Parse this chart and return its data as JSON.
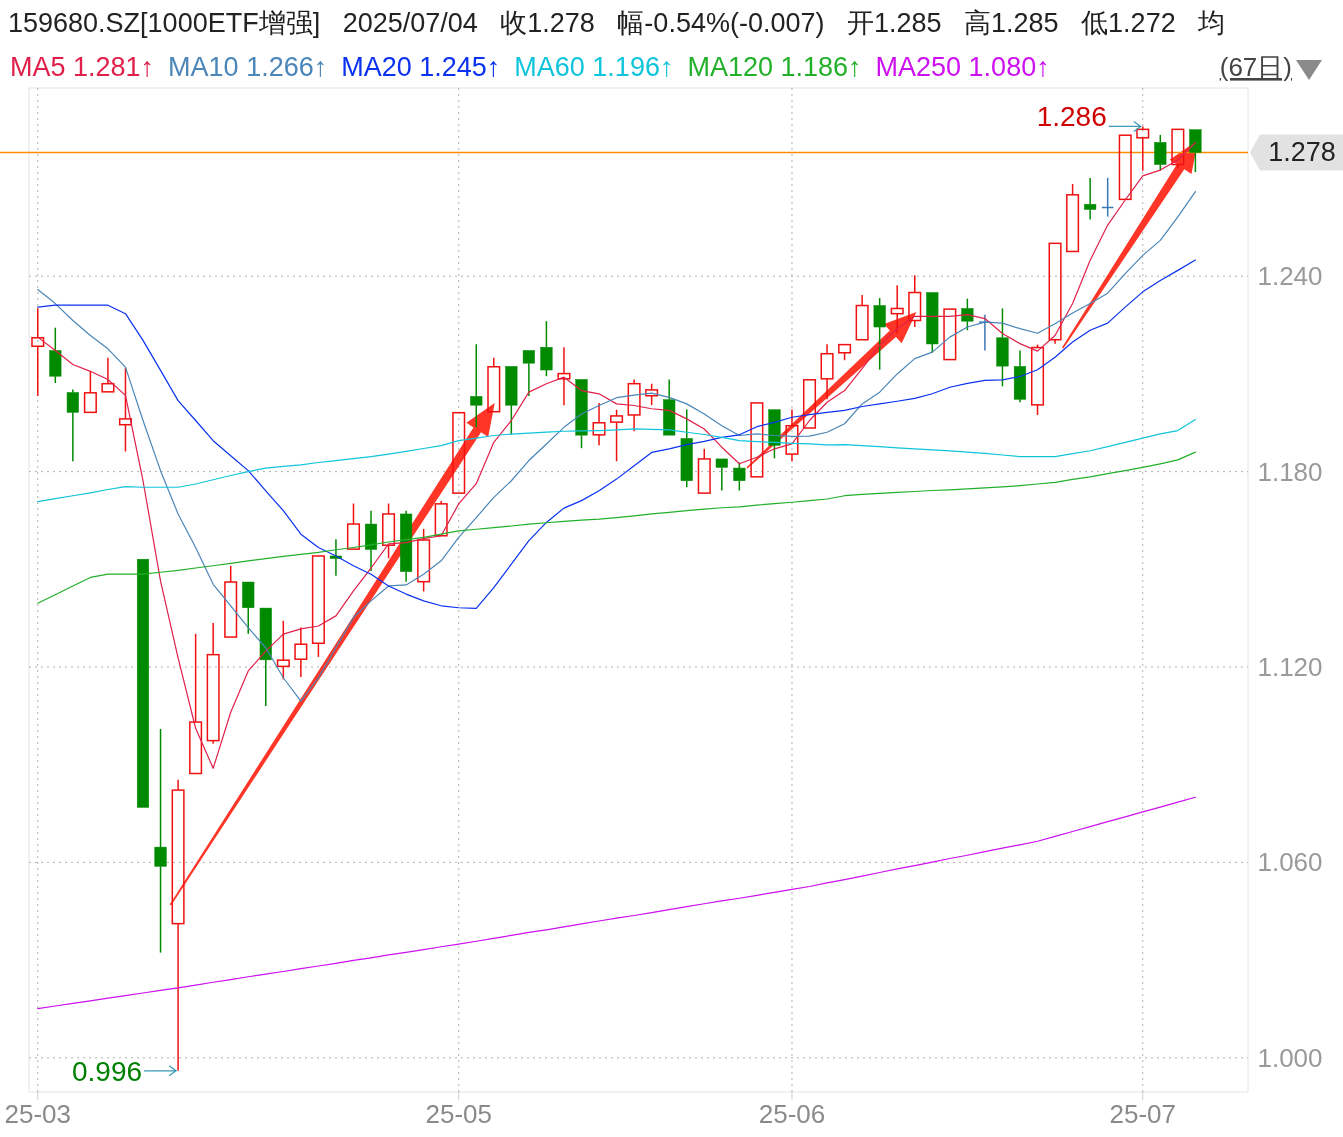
{
  "chart_data": {
    "type": "candlestick",
    "title": "159680.SZ[1000ETF增强]   2025/07/04   收1.278   幅-0.54%(-0.007)   开1.285   高1.285   低1.272   均",
    "categories": [
      "25-03",
      null,
      null,
      null,
      null,
      null,
      null,
      null,
      null,
      null,
      null,
      null,
      null,
      null,
      null,
      null,
      null,
      null,
      null,
      null,
      null,
      null,
      null,
      null,
      "25-05",
      null,
      null,
      null,
      null,
      null,
      null,
      null,
      null,
      null,
      null,
      null,
      null,
      null,
      null,
      null,
      null,
      null,
      null,
      "25-06",
      null,
      null,
      null,
      null,
      null,
      null,
      null,
      null,
      null,
      null,
      null,
      null,
      null,
      null,
      null,
      null,
      null,
      null,
      null,
      "25-07",
      null,
      null,
      null
    ],
    "ohlc": [
      [
        1.2185,
        1.2302,
        1.2032,
        1.2211
      ],
      [
        1.2172,
        1.2242,
        1.2072,
        1.2093
      ],
      [
        1.2043,
        1.2052,
        1.1832,
        1.1982
      ],
      [
        1.1982,
        1.2109,
        1.1982,
        1.2042
      ],
      [
        1.2045,
        1.215,
        1.2045,
        1.207
      ],
      [
        1.1944,
        1.2119,
        1.1862,
        1.1962
      ],
      [
        1.1531,
        1.1531,
        1.0769,
        1.0769
      ],
      [
        1.0647,
        1.101,
        1.0323,
        1.0588
      ],
      [
        1.0412,
        1.0854,
        0.996,
        1.0822
      ],
      [
        1.0873,
        1.1302,
        1.0873,
        1.1031
      ],
      [
        1.0974,
        1.1335,
        1.0964,
        1.1238
      ],
      [
        1.1292,
        1.1511,
        1.1292,
        1.1461
      ],
      [
        1.1461,
        1.1461,
        1.1302,
        1.1382
      ],
      [
        1.1381,
        1.1381,
        1.108,
        1.1222
      ],
      [
        1.1202,
        1.1342,
        1.1162,
        1.1221
      ],
      [
        1.1224,
        1.1321,
        1.1169,
        1.127
      ],
      [
        1.1273,
        1.1541,
        1.1231,
        1.1541
      ],
      [
        1.1541,
        1.1592,
        1.148,
        1.1533
      ],
      [
        1.1562,
        1.1702,
        1.1562,
        1.1639
      ],
      [
        1.1639,
        1.168,
        1.1495,
        1.1561
      ],
      [
        1.1574,
        1.1702,
        1.1534,
        1.167
      ],
      [
        1.167,
        1.168,
        1.1462,
        1.1493
      ],
      [
        1.1462,
        1.1624,
        1.1432,
        1.159
      ],
      [
        1.1603,
        1.171,
        1.1603,
        1.1701
      ],
      [
        1.1734,
        1.1981,
        1.1734,
        1.1981
      ],
      [
        1.2031,
        1.2191,
        1.1936,
        1.2004
      ],
      [
        1.1984,
        1.215,
        1.1984,
        1.2122
      ],
      [
        1.2123,
        1.2123,
        1.1914,
        1.2004
      ],
      [
        1.2172,
        1.2172,
        1.2032,
        1.2133
      ],
      [
        1.2182,
        1.2262,
        1.2093,
        1.2112
      ],
      [
        1.2085,
        1.2182,
        1.2004,
        1.2101
      ],
      [
        1.2083,
        1.2083,
        1.1872,
        1.1912
      ],
      [
        1.1913,
        1.2011,
        1.1881,
        1.195
      ],
      [
        1.1952,
        1.199,
        1.1832,
        1.1971
      ],
      [
        1.1974,
        1.2083,
        1.1924,
        1.207
      ],
      [
        1.2033,
        1.207,
        1.2004,
        1.2051
      ],
      [
        1.2021,
        1.2083,
        1.1912,
        1.1912
      ],
      [
        1.1902,
        1.1991,
        1.1752,
        1.1772
      ],
      [
        1.1734,
        1.187,
        1.1734,
        1.1839
      ],
      [
        1.1839,
        1.1839,
        1.1742,
        1.1813
      ],
      [
        1.1811,
        1.1828,
        1.1742,
        1.1772
      ],
      [
        1.1784,
        1.2011,
        1.1784,
        1.2011
      ],
      [
        1.199,
        1.199,
        1.1841,
        1.1881
      ],
      [
        1.1854,
        1.1991,
        1.1832,
        1.1941
      ],
      [
        1.1934,
        1.2082,
        1.1934,
        1.2082
      ],
      [
        1.2085,
        1.2191,
        1.2022,
        1.2162
      ],
      [
        1.2165,
        1.219,
        1.2142,
        1.219
      ],
      [
        1.2205,
        1.2342,
        1.2205,
        1.231
      ],
      [
        1.231,
        1.2333,
        1.2113,
        1.2244
      ],
      [
        1.2285,
        1.2372,
        1.2225,
        1.2301
      ],
      [
        1.2264,
        1.2403,
        1.2244,
        1.235
      ],
      [
        1.235,
        1.235,
        1.2165,
        1.2192
      ],
      [
        1.2144,
        1.2299,
        1.2144,
        1.2299
      ],
      [
        1.2301,
        1.2331,
        1.2234,
        1.2262
      ],
      [
        1.2259,
        1.2282,
        1.2172,
        1.2259
      ],
      [
        1.2211,
        1.2301,
        1.2062,
        1.2124
      ],
      [
        1.2123,
        1.2172,
        1.2013,
        1.2022
      ],
      [
        1.2005,
        1.219,
        1.1974,
        1.2181
      ],
      [
        1.2205,
        1.2501,
        1.2193,
        1.2501
      ],
      [
        1.2476,
        1.2683,
        1.2476,
        1.265
      ],
      [
        1.2621,
        1.2702,
        1.2574,
        1.2605
      ],
      [
        1.2611,
        1.2702,
        1.2583,
        1.2611
      ],
      [
        1.2636,
        1.2833,
        1.2636,
        1.2833
      ],
      [
        1.2825,
        1.286,
        1.2724,
        1.2851
      ],
      [
        1.2811,
        1.2834,
        1.2724,
        1.2743
      ],
      [
        1.2743,
        1.2851,
        1.2732,
        1.2851
      ],
      [
        1.285,
        1.285,
        1.272,
        1.278
      ]
    ],
    "series": [
      {
        "name": "MA5 1.281↑",
        "type": "line",
        "color": "#e0204a",
        "values": [
          1.2213,
          1.2172,
          1.2129,
          1.2108,
          1.2083,
          1.2034,
          1.1772,
          1.1464,
          1.1228,
          1.1012,
          1.0889,
          1.1061,
          1.1188,
          1.1249,
          1.1301,
          1.1317,
          1.1326,
          1.1357,
          1.1434,
          1.1504,
          1.1578,
          1.1582,
          1.1594,
          1.1603,
          1.1701,
          1.1763,
          1.189,
          1.1957,
          1.2044,
          1.207,
          1.209,
          1.2049,
          1.2039,
          1.2008,
          1.2003,
          1.1993,
          1.1988,
          1.1962,
          1.1931,
          1.1875,
          1.1824,
          1.1844,
          1.187,
          1.1885,
          1.1957,
          1.2013,
          1.2049,
          1.2116,
          1.2188,
          1.2239,
          1.2277,
          1.2277,
          1.2277,
          1.2282,
          1.227,
          1.2224,
          1.2193,
          1.217,
          1.2218,
          1.2316,
          1.2449,
          1.2557,
          1.2634,
          1.2708,
          1.2726,
          1.2757,
          1.281
        ]
      },
      {
        "name": "MA10 1.266↑",
        "type": "line",
        "color": "#4a86b8",
        "values": [
          1.2359,
          1.2316,
          1.2264,
          1.2218,
          1.2177,
          1.2121,
          1.1957,
          1.1803,
          1.167,
          1.1567,
          1.1454,
          1.1388,
          1.1321,
          1.1259,
          1.1167,
          1.1095,
          1.1167,
          1.1259,
          1.1352,
          1.1403,
          1.1449,
          1.1452,
          1.1485,
          1.1526,
          1.1598,
          1.1659,
          1.1721,
          1.1772,
          1.1834,
          1.1885,
          1.1936,
          1.1977,
          1.2003,
          1.2027,
          1.2035,
          1.2041,
          1.2028,
          1.2008,
          1.1977,
          1.1941,
          1.1911,
          1.1916,
          1.1911,
          1.1908,
          1.1909,
          1.1921,
          1.1947,
          1.2008,
          1.2044,
          1.21,
          1.2147,
          1.2167,
          1.2213,
          1.2244,
          1.2259,
          1.2256,
          1.2239,
          1.2225,
          1.2254,
          1.2287,
          1.2316,
          1.2348,
          1.2408,
          1.2464,
          1.251,
          1.2582,
          1.266
        ]
      },
      {
        "name": "MA20 1.245↑",
        "type": "line",
        "color": "#0a32f0",
        "values": [
          1.2305,
          1.2311,
          1.2311,
          1.2311,
          1.2311,
          1.2285,
          1.2203,
          1.2111,
          1.2018,
          1.1957,
          1.1895,
          1.1849,
          1.1803,
          1.1741,
          1.168,
          1.1608,
          1.1567,
          1.1541,
          1.1511,
          1.1485,
          1.1449,
          1.1424,
          1.1403,
          1.1388,
          1.1382,
          1.138,
          1.1444,
          1.1516,
          1.1588,
          1.1644,
          1.1688,
          1.1711,
          1.1741,
          1.1777,
          1.1818,
          1.1859,
          1.187,
          1.1883,
          1.1893,
          1.1905,
          1.1913,
          1.1938,
          1.1951,
          1.1967,
          1.1975,
          1.1982,
          1.1988,
          1.2,
          1.2008,
          1.2016,
          1.2025,
          1.2039,
          1.2059,
          1.2071,
          1.208,
          1.2082,
          1.2092,
          1.2113,
          1.2151,
          1.2198,
          1.2234,
          1.2256,
          1.2305,
          1.2352,
          1.2387,
          1.2418,
          1.245
        ]
      },
      {
        "name": "MA60 1.196↑",
        "type": "line",
        "color": "#10c4dc",
        "values": [
          1.1708,
          1.1717,
          1.1726,
          1.1735,
          1.1745,
          1.1754,
          1.1752,
          1.1752,
          1.1752,
          1.1762,
          1.1775,
          1.1788,
          1.18,
          1.1811,
          1.1816,
          1.1821,
          1.1828,
          1.1834,
          1.184,
          1.1846,
          1.1854,
          1.1862,
          1.1871,
          1.188,
          1.1895,
          1.1903,
          1.1911,
          1.1915,
          1.1918,
          1.1921,
          1.1924,
          1.1925,
          1.1926,
          1.1928,
          1.1931,
          1.193,
          1.1928,
          1.1921,
          1.1914,
          1.1905,
          1.1895,
          1.1892,
          1.189,
          1.1887,
          1.1885,
          1.1882,
          1.1883,
          1.188,
          1.1877,
          1.1873,
          1.187,
          1.1867,
          1.1864,
          1.186,
          1.1856,
          1.1851,
          1.1846,
          1.1846,
          1.1846,
          1.1855,
          1.1864,
          1.1877,
          1.189,
          1.1903,
          1.1916,
          1.1926,
          1.196
        ]
      },
      {
        "name": "MA120 1.186↑",
        "type": "line",
        "color": "#22b02a",
        "values": [
          1.1396,
          1.1422,
          1.1449,
          1.1475,
          1.1485,
          1.1485,
          1.1485,
          1.1491,
          1.1497,
          1.1504,
          1.1511,
          1.1518,
          1.1526,
          1.1533,
          1.154,
          1.1546,
          1.1552,
          1.156,
          1.1567,
          1.1575,
          1.1584,
          1.1591,
          1.1598,
          1.1608,
          1.1618,
          1.1623,
          1.1628,
          1.1633,
          1.1639,
          1.1643,
          1.1647,
          1.1651,
          1.1654,
          1.1659,
          1.1664,
          1.167,
          1.1675,
          1.168,
          1.1685,
          1.1689,
          1.1692,
          1.1697,
          1.1702,
          1.1706,
          1.1711,
          1.1716,
          1.1726,
          1.173,
          1.1733,
          1.1736,
          1.1739,
          1.1742,
          1.1744,
          1.1747,
          1.175,
          1.1753,
          1.1757,
          1.1762,
          1.1767,
          1.1776,
          1.1784,
          1.1794,
          1.1803,
          1.1813,
          1.1824,
          1.1836,
          1.186
        ]
      },
      {
        "name": "MA250 1.080↑",
        "type": "line",
        "color": "#cc10f0",
        "values": [
          1.0151,
          1.0159,
          1.0167,
          1.0175,
          1.0183,
          1.0191,
          1.0199,
          1.0207,
          1.0215,
          1.0223,
          1.0232,
          1.024,
          1.0249,
          1.0257,
          1.0265,
          1.0274,
          1.0282,
          1.029,
          1.0299,
          1.0307,
          1.0316,
          1.0324,
          1.0332,
          1.0341,
          1.0349,
          1.0358,
          1.0367,
          1.0376,
          1.0385,
          1.0393,
          1.0402,
          1.0411,
          1.042,
          1.0429,
          1.0437,
          1.0446,
          1.0455,
          1.0464,
          1.0473,
          1.0482,
          1.049,
          1.0499,
          1.0508,
          1.0517,
          1.0526,
          1.0537,
          1.0547,
          1.0558,
          1.0569,
          1.058,
          1.059,
          1.0601,
          1.0612,
          1.0622,
          1.0633,
          1.0644,
          1.0654,
          1.0665,
          1.068,
          1.0695,
          1.071,
          1.0725,
          1.074,
          1.0755,
          1.077,
          1.0785,
          1.08
        ]
      }
    ],
    "ylim": [
      0.9895,
      1.2978
    ],
    "yticks": [
      {
        "value": 1.0,
        "label": "1.000"
      },
      {
        "value": 1.06,
        "label": "1.060"
      },
      {
        "value": 1.12,
        "label": "1.120"
      },
      {
        "value": 1.18,
        "label": "1.180"
      },
      {
        "value": 1.24,
        "label": "1.240"
      }
    ],
    "grid": true,
    "legend": "top",
    "ref_lines": [
      {
        "axis": "y",
        "value": 1.278,
        "label": "1.278",
        "color": "#ff8c00"
      }
    ],
    "annotations": [
      "(67日)",
      "1.286",
      "0.996"
    ]
  }
}
